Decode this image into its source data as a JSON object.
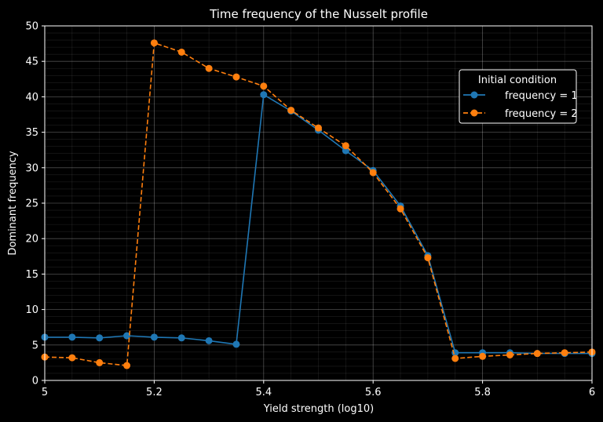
{
  "chart_data": {
    "type": "line",
    "title": "Time frequency of the Nusselt profile",
    "xlabel": "Yield strength (log10)",
    "ylabel": "Dominant frequency",
    "xlim": [
      5,
      6
    ],
    "ylim": [
      0,
      50
    ],
    "xticks": [
      "5",
      "5.2",
      "5.4",
      "5.6",
      "5.8",
      "6"
    ],
    "yticks": [
      "0",
      "5",
      "10",
      "15",
      "20",
      "25",
      "30",
      "35",
      "40",
      "45",
      "50"
    ],
    "grid": true,
    "legend": {
      "title": "Initial condition",
      "placement": "upper-right"
    },
    "series": [
      {
        "name": "frequency = 1",
        "color": "#1f77b4",
        "linestyle": "solid",
        "marker": "circle",
        "x": [
          5.0,
          5.05,
          5.1,
          5.15,
          5.2,
          5.25,
          5.3,
          5.35,
          5.4,
          5.45,
          5.5,
          5.55,
          5.6,
          5.65,
          5.7,
          5.75,
          5.8,
          5.85,
          5.9,
          5.95,
          6.0
        ],
        "y": [
          6.1,
          6.1,
          6.0,
          6.3,
          6.1,
          6.0,
          5.6,
          5.1,
          40.3,
          38.0,
          35.3,
          32.4,
          29.6,
          24.6,
          17.6,
          3.9,
          3.9,
          3.9,
          3.8,
          3.8,
          3.8
        ]
      },
      {
        "name": "frequency = 2",
        "color": "#ff7f0e",
        "linestyle": "dashed",
        "marker": "circle",
        "x": [
          5.0,
          5.05,
          5.1,
          5.15,
          5.2,
          5.25,
          5.3,
          5.35,
          5.4,
          5.45,
          5.5,
          5.55,
          5.6,
          5.65,
          5.7,
          5.75,
          5.8,
          5.85,
          5.9,
          5.95,
          6.0
        ],
        "y": [
          3.3,
          3.2,
          2.5,
          2.1,
          47.6,
          46.3,
          44.0,
          42.8,
          41.5,
          38.1,
          35.6,
          33.1,
          29.3,
          24.2,
          17.3,
          3.1,
          3.4,
          3.6,
          3.8,
          3.9,
          4.0
        ]
      }
    ]
  }
}
